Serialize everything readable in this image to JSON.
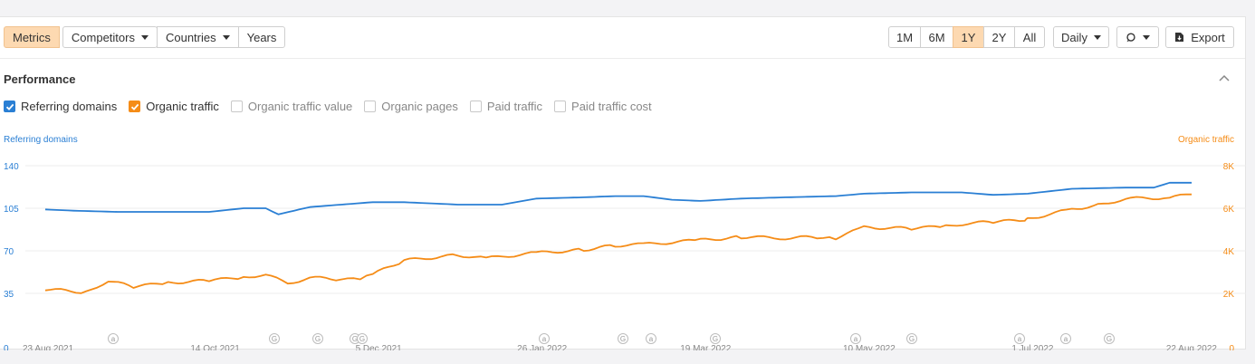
{
  "toolbar": {
    "left_tabs": [
      {
        "label": "Metrics",
        "active": true,
        "dropdown": false
      },
      {
        "label": "Competitors",
        "active": false,
        "dropdown": true
      },
      {
        "label": "Countries",
        "active": false,
        "dropdown": true
      },
      {
        "label": "Years",
        "active": false,
        "dropdown": false
      }
    ],
    "ranges": [
      {
        "label": "1M",
        "active": false
      },
      {
        "label": "6M",
        "active": false
      },
      {
        "label": "1Y",
        "active": true
      },
      {
        "label": "2Y",
        "active": false
      },
      {
        "label": "All",
        "active": false
      }
    ],
    "interval_label": "Daily",
    "annotations_icon": "comment-icon",
    "export_label": "Export"
  },
  "section": {
    "title": "Performance",
    "collapse_icon": "chevron-up-icon"
  },
  "legend": [
    {
      "label": "Referring domains",
      "checked": true,
      "color": "#2a7fd4"
    },
    {
      "label": "Organic traffic",
      "checked": true,
      "color": "#f58c17"
    },
    {
      "label": "Organic traffic value",
      "checked": false
    },
    {
      "label": "Organic pages",
      "checked": false
    },
    {
      "label": "Paid traffic",
      "checked": false
    },
    {
      "label": "Paid traffic cost",
      "checked": false
    }
  ],
  "chart_data": {
    "type": "line",
    "left_axis": {
      "title": "Referring domains",
      "ticks": [
        "0",
        "35",
        "70",
        "105",
        "140"
      ],
      "range": [
        0,
        140
      ],
      "color": "#2a7fd4"
    },
    "right_axis": {
      "title": "Organic traffic",
      "ticks": [
        "0",
        "2K",
        "4K",
        "6K",
        "8K"
      ],
      "range": [
        0,
        8000
      ],
      "color": "#f58c17"
    },
    "x_ticks": [
      "23 Aug 2021",
      "14 Oct 2021",
      "5 Dec 2021",
      "26 Jan 2022",
      "19 Mar 2022",
      "10 May 2022",
      "1 Jul 2022",
      "22 Aug 2022"
    ],
    "grid": true,
    "series": [
      {
        "name": "Referring domains",
        "axis": "left",
        "color": "#2a7fd4",
        "x": [
          "2021-08-23",
          "2021-09-01",
          "2021-09-15",
          "2021-10-01",
          "2021-10-14",
          "2021-10-25",
          "2021-11-01",
          "2021-11-05",
          "2021-11-15",
          "2021-11-25",
          "2021-12-05",
          "2021-12-15",
          "2022-01-01",
          "2022-01-15",
          "2022-01-26",
          "2022-02-10",
          "2022-02-20",
          "2022-03-01",
          "2022-03-10",
          "2022-03-19",
          "2022-04-01",
          "2022-04-15",
          "2022-05-01",
          "2022-05-10",
          "2022-05-25",
          "2022-06-10",
          "2022-06-20",
          "2022-07-01",
          "2022-07-15",
          "2022-08-01",
          "2022-08-10",
          "2022-08-15",
          "2022-08-22"
        ],
        "values": [
          104,
          103,
          102,
          102,
          102,
          105,
          105,
          100,
          106,
          108,
          110,
          110,
          108,
          108,
          113,
          114,
          115,
          115,
          112,
          111,
          113,
          114,
          115,
          117,
          118,
          118,
          116,
          117,
          121,
          122,
          122,
          126,
          126
        ]
      },
      {
        "name": "Organic traffic",
        "axis": "right",
        "color": "#f58c17",
        "x": [
          "2021-08-23",
          "2021-09-05",
          "2021-09-12",
          "2021-09-20",
          "2021-10-01",
          "2021-10-14",
          "2021-10-25",
          "2021-11-01",
          "2021-11-08",
          "2021-11-15",
          "2021-11-25",
          "2021-12-01",
          "2021-12-05",
          "2021-12-15",
          "2022-01-01",
          "2022-01-10",
          "2022-01-26",
          "2022-02-10",
          "2022-02-20",
          "2022-03-01",
          "2022-03-19",
          "2022-04-01",
          "2022-04-15",
          "2022-04-25",
          "2022-05-01",
          "2022-05-10",
          "2022-05-25",
          "2022-06-05",
          "2022-06-12",
          "2022-06-20",
          "2022-06-30",
          "2022-07-01",
          "2022-07-15",
          "2022-07-25",
          "2022-08-01",
          "2022-08-15",
          "2022-08-22"
        ],
        "values": [
          2200,
          2050,
          2600,
          2300,
          2500,
          2600,
          2750,
          2900,
          2450,
          2750,
          2650,
          2650,
          2900,
          3550,
          3800,
          3650,
          3900,
          4050,
          4250,
          4300,
          4500,
          4650,
          4600,
          4650,
          4600,
          5100,
          5050,
          5150,
          5300,
          5350,
          5450,
          5500,
          5950,
          6200,
          6450,
          6500,
          6650
        ]
      }
    ],
    "annotation_markers": [
      "a",
      "G",
      "G",
      "G",
      "a",
      "G",
      "a",
      "G",
      "a",
      "G",
      "a",
      "a",
      "G"
    ]
  }
}
